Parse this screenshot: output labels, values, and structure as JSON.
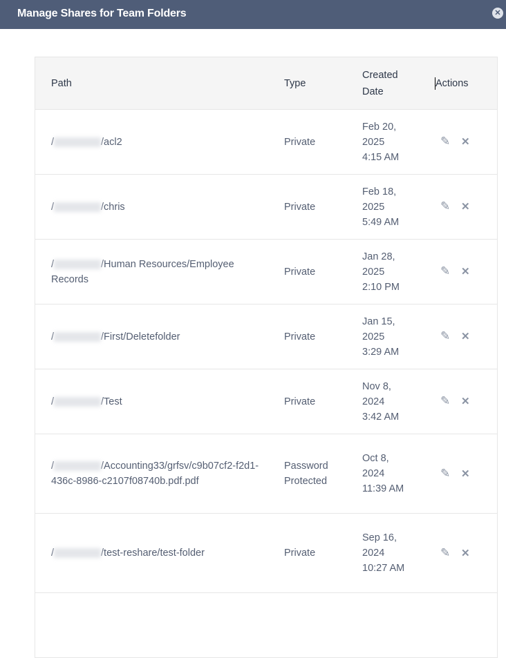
{
  "dialog": {
    "title": "Manage Shares for Team Folders",
    "close_icon": "close-circle-icon"
  },
  "table": {
    "headers": {
      "path": "Path",
      "type": "Type",
      "created_line1": "Created",
      "created_line2": "Date",
      "actions": "Actions"
    },
    "rows": [
      {
        "path_prefix": "/",
        "path_suffix": "/acl2",
        "type": "Private",
        "date": "Feb 20,",
        "year": "2025",
        "time": "4:15 AM"
      },
      {
        "path_prefix": "/",
        "path_suffix": "/chris",
        "type": "Private",
        "date": "Feb 18,",
        "year": "2025",
        "time": "5:49 AM"
      },
      {
        "path_prefix": "/",
        "path_suffix": "/Human Resources/Employee Records",
        "type": "Private",
        "date": "Jan 28,",
        "year": "2025",
        "time": "2:10 PM"
      },
      {
        "path_prefix": "/",
        "path_suffix": "/First/Deletefolder",
        "type": "Private",
        "date": "Jan 15,",
        "year": "2025",
        "time": "3:29 AM"
      },
      {
        "path_prefix": "/",
        "path_suffix": "/Test",
        "type": "Private",
        "date": "Nov 8,",
        "year": "2024",
        "time": "3:42 AM"
      },
      {
        "path_prefix": "/",
        "path_suffix": "/Accounting33/grfsv/c9b07cf2-f2d1-436c-8986-c2107f08740b.pdf.pdf",
        "type": "Password Protected",
        "date": "Oct 8,",
        "year": "2024",
        "time": "11:39 AM"
      },
      {
        "path_prefix": "/",
        "path_suffix": "/test-reshare/test-folder",
        "type": "Private",
        "date": "Sep 16,",
        "year": "2024",
        "time": "10:27 AM"
      }
    ]
  }
}
